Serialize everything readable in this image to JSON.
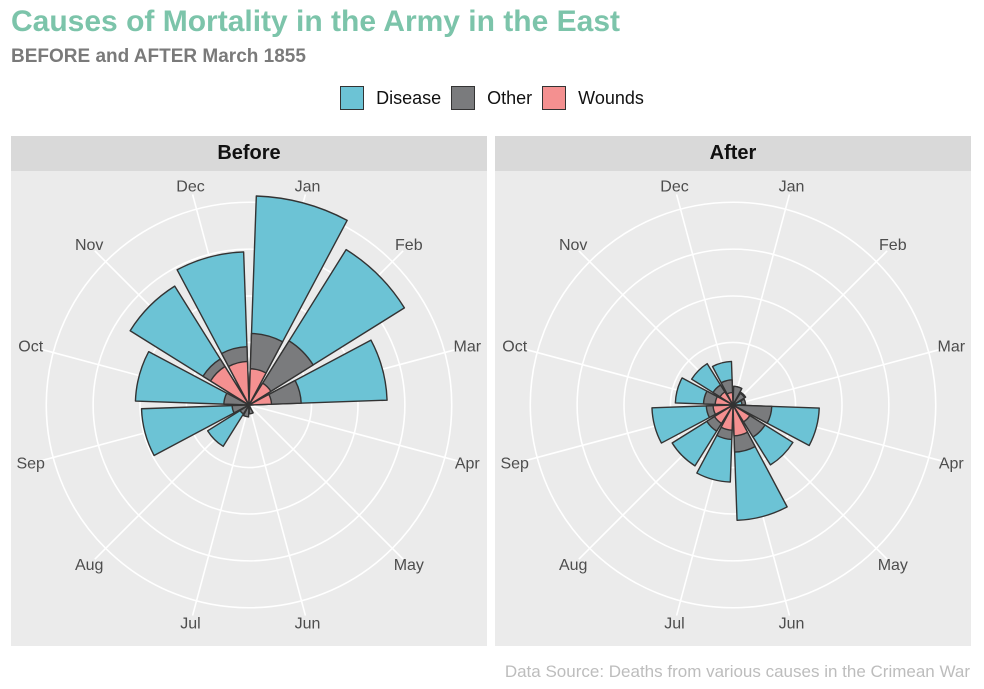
{
  "title": "Causes of Mortality in the Army in the East",
  "subtitle": "BEFORE and AFTER March 1855",
  "caption": "Data Source: Deaths from various causes in the Crimean War",
  "legend": [
    {
      "name": "Disease",
      "color": "#6cc3d5"
    },
    {
      "name": "Other",
      "color": "#7a7b7d"
    },
    {
      "name": "Wounds",
      "color": "#f49090"
    }
  ],
  "chart_data": {
    "type": "polar-area",
    "months": [
      "Jan",
      "Feb",
      "Mar",
      "Apr",
      "May",
      "Jun",
      "Jul",
      "Aug",
      "Sep",
      "Oct",
      "Nov",
      "Dec"
    ],
    "radial_scale": "sqrt",
    "radial_max": 3000,
    "grid": true,
    "legend_position": "top",
    "panels": [
      {
        "name": "Before",
        "series": [
          {
            "name": "Disease",
            "values": [
              2761,
              2120,
              1205,
              0,
              0,
              0,
              0,
              150,
              730,
              815,
              1240,
              1480
            ]
          },
          {
            "name": "Other",
            "values": [
              324,
              361,
              172,
              0,
              0,
              5,
              9,
              7,
              18,
              40,
              186,
              215
            ]
          },
          {
            "name": "Wounds",
            "values": [
              83,
              42,
              32,
              0,
              0,
              1,
              0,
              0,
              0,
              0,
              130,
              120
            ]
          }
        ]
      },
      {
        "name": "After",
        "series": [
          {
            "name": "Disease",
            "values": [
              22,
              14,
              5,
              470,
              315,
              840,
              375,
              325,
              415,
              210,
              150,
              120
            ]
          },
          {
            "name": "Other",
            "values": [
              22,
              12,
              10,
              95,
              90,
              140,
              75,
              60,
              45,
              55,
              35,
              40
            ]
          },
          {
            "name": "Wounds",
            "values": [
              0,
              0,
              0,
              0,
              25,
              60,
              40,
              30,
              25,
              20,
              15,
              10
            ]
          }
        ]
      }
    ]
  }
}
